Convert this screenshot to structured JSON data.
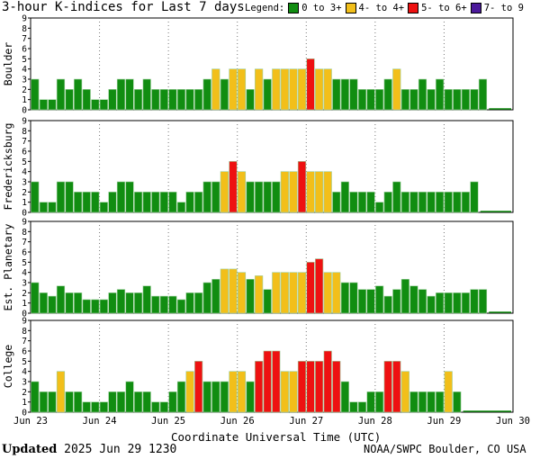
{
  "title": "3-hour K-indices for Last 7 days",
  "legend": {
    "label": "Legend:",
    "items": [
      {
        "label": "0 to 3+",
        "color": "#118d11"
      },
      {
        "label": "4- to 4+",
        "color": "#f2bf1a"
      },
      {
        "label": "5- to 6+",
        "color": "#ee1111"
      },
      {
        "label": "7- to 9",
        "color": "#4c1a9b"
      }
    ]
  },
  "footer": {
    "updated_label": "Updated",
    "updated_value": "2025 Jun 29 1230",
    "credit": "NOAA/SWPC Boulder, CO USA"
  },
  "chart_data": {
    "type": "bar",
    "xlabel": "Coordinate Universal Time (UTC)",
    "x_ticks": [
      "Jun 23",
      "Jun 24",
      "Jun 25",
      "Jun 26",
      "Jun 27",
      "Jun 28",
      "Jun 29",
      "Jun 30"
    ],
    "ylim": [
      0,
      9
    ],
    "y_ticks": [
      "0",
      "1",
      "2",
      "3",
      "4",
      "5",
      "6",
      "7",
      "8",
      "9"
    ],
    "grid": true,
    "interval_hours": 3,
    "panels": [
      {
        "name": "Boulder",
        "values": [
          3,
          1,
          1,
          3,
          2,
          3,
          2,
          1,
          1,
          2,
          3,
          3,
          2,
          3,
          2,
          2,
          2,
          2,
          2,
          2,
          3,
          4,
          3,
          4,
          4,
          2,
          4,
          3,
          4,
          4,
          4,
          4,
          5,
          4,
          4,
          3,
          3,
          3,
          2,
          2,
          2,
          3,
          4,
          2,
          2,
          3,
          2,
          3,
          2,
          2,
          2,
          2,
          3
        ]
      },
      {
        "name": "Fredericksburg",
        "values": [
          3,
          1,
          1,
          3,
          3,
          2,
          2,
          2,
          1,
          2,
          3,
          3,
          2,
          2,
          2,
          2,
          2,
          1,
          2,
          2,
          3,
          3,
          4,
          5,
          4,
          3,
          3,
          3,
          3,
          4,
          4,
          5,
          4,
          4,
          4,
          2,
          3,
          2,
          2,
          2,
          1,
          2,
          3,
          2,
          2,
          2,
          2,
          2,
          2,
          2,
          2,
          3
        ]
      },
      {
        "name": "Est. Planetary",
        "values": [
          3,
          2,
          1.67,
          2.67,
          2,
          2,
          1.33,
          1.33,
          1.33,
          2,
          2.33,
          2,
          2,
          2.67,
          1.67,
          1.67,
          1.67,
          1.33,
          2,
          2,
          3,
          3.33,
          4.33,
          4.33,
          4,
          3.33,
          3.67,
          2.33,
          4,
          4,
          4,
          4,
          5,
          5.33,
          4,
          4,
          3,
          3,
          2.33,
          2.33,
          2.67,
          1.67,
          2.33,
          3.33,
          2.67,
          2.33,
          1.67,
          2,
          2,
          2,
          2,
          2.33,
          2.33
        ]
      },
      {
        "name": "College",
        "values": [
          3,
          2,
          2,
          4,
          2,
          2,
          1,
          1,
          1,
          2,
          2,
          3,
          2,
          2,
          1,
          1,
          2,
          3,
          4,
          5,
          3,
          3,
          3,
          4,
          4,
          3,
          5,
          6,
          6,
          4,
          4,
          5,
          5,
          5,
          6,
          5,
          3,
          1,
          1,
          2,
          2,
          5,
          5,
          4,
          2,
          2,
          2,
          2,
          4,
          2
        ]
      }
    ]
  }
}
